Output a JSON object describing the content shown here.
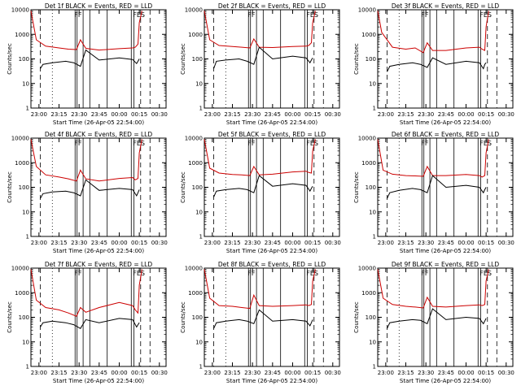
{
  "colors": {
    "events": "#000000",
    "lld": "#cc0000",
    "axes": "#000000",
    "background": "#ffffff"
  },
  "panels_layout": {
    "rows": 3,
    "cols": 3
  },
  "chart_data": [
    {
      "type": "line",
      "title": "Det 1f BLACK = Events, RED = LLD",
      "xlabel": "Start Time (26-Apr-05 22:54:00)",
      "ylabel": "Counts/sec",
      "x_ticks": [
        "23:00",
        "23:15",
        "23:30",
        "23:45",
        "00:00",
        "00:15",
        "00:30"
      ],
      "y_ticks": [
        "1",
        "10",
        "100",
        "1000",
        "10000"
      ],
      "xlim": [
        "22:54",
        "00:35"
      ],
      "ylim": [
        1,
        10000
      ],
      "y_scale": "log",
      "marker_labels": [
        "FF",
        "F",
        "ES"
      ],
      "series": [
        {
          "color": "#cc0000",
          "x": [
            "22:54",
            "22:58",
            "23:05",
            "23:15",
            "23:22",
            "23:28",
            "23:31",
            "23:35",
            "23:45",
            "00:00",
            "00:10",
            "00:12",
            "00:14",
            "00:15",
            "00:17"
          ],
          "values": [
            9000,
            600,
            330,
            280,
            250,
            240,
            600,
            270,
            230,
            260,
            280,
            300,
            400,
            3000,
            9000
          ]
        },
        {
          "color": "#000000",
          "x": [
            "23:01",
            "23:03",
            "23:10",
            "23:20",
            "23:26",
            "23:31",
            "23:35",
            "23:45",
            "00:00",
            "00:10",
            "00:13",
            "00:14",
            "00:15"
          ],
          "values": [
            40,
            60,
            70,
            80,
            70,
            50,
            230,
            90,
            110,
            95,
            65,
            80,
            100
          ]
        }
      ]
    },
    {
      "type": "line",
      "title": "Det 2f BLACK = Events, RED = LLD",
      "xlabel": "Start Time (26-Apr-05 22:54:00)",
      "ylabel": "Counts/sec",
      "x_ticks": [
        "23:00",
        "23:15",
        "23:30",
        "23:45",
        "00:00",
        "00:15",
        "00:30"
      ],
      "y_ticks": [
        "1",
        "10",
        "100",
        "1000",
        "10000"
      ],
      "xlim": [
        "22:54",
        "00:35"
      ],
      "ylim": [
        1,
        10000
      ],
      "y_scale": "log",
      "marker_labels": [
        "FF",
        "F",
        "ES"
      ],
      "series": [
        {
          "color": "#cc0000",
          "x": [
            "22:54",
            "22:58",
            "23:05",
            "23:15",
            "23:22",
            "23:28",
            "23:31",
            "23:35",
            "23:45",
            "00:00",
            "00:10",
            "00:12",
            "00:14",
            "00:15",
            "00:17"
          ],
          "values": [
            9000,
            600,
            350,
            320,
            300,
            280,
            650,
            300,
            290,
            320,
            330,
            350,
            450,
            3000,
            9000
          ]
        },
        {
          "color": "#000000",
          "x": [
            "23:01",
            "23:03",
            "23:10",
            "23:20",
            "23:26",
            "23:31",
            "23:35",
            "23:45",
            "00:00",
            "00:10",
            "00:13",
            "00:14",
            "00:15"
          ],
          "values": [
            40,
            80,
            90,
            100,
            80,
            60,
            300,
            100,
            130,
            110,
            70,
            90,
            110
          ]
        }
      ]
    },
    {
      "type": "line",
      "title": "Det 3f BLACK = Events, RED = LLD",
      "xlabel": "Start Time (26-Apr-05 22:54:00)",
      "ylabel": "Counts/sec",
      "x_ticks": [
        "23:00",
        "23:15",
        "23:30",
        "23:45",
        "00:00",
        "00:15",
        "00:30"
      ],
      "y_ticks": [
        "1",
        "10",
        "100",
        "1000",
        "10000"
      ],
      "xlim": [
        "22:54",
        "00:35"
      ],
      "ylim": [
        1,
        10000
      ],
      "y_scale": "log",
      "marker_labels": [
        "FF",
        "F",
        "ES"
      ],
      "series": [
        {
          "color": "#cc0000",
          "x": [
            "22:54",
            "22:57",
            "23:05",
            "23:15",
            "23:22",
            "23:28",
            "23:31",
            "23:35",
            "23:45",
            "00:00",
            "00:10",
            "00:12",
            "00:14",
            "00:15",
            "00:17"
          ],
          "values": [
            9000,
            1200,
            300,
            250,
            280,
            180,
            450,
            220,
            220,
            280,
            300,
            250,
            220,
            2000,
            9000
          ]
        },
        {
          "color": "#000000",
          "x": [
            "23:01",
            "23:03",
            "23:10",
            "23:20",
            "23:26",
            "23:31",
            "23:35",
            "23:45",
            "00:00",
            "00:10",
            "00:13",
            "00:14",
            "00:15"
          ],
          "values": [
            30,
            50,
            60,
            70,
            60,
            45,
            110,
            60,
            80,
            70,
            40,
            60,
            70
          ]
        }
      ]
    },
    {
      "type": "line",
      "title": "Det 4f BLACK = Events, RED = LLD",
      "xlabel": "Start Time (26-Apr-05 22:54:00)",
      "ylabel": "Counts/sec",
      "x_ticks": [
        "23:00",
        "23:15",
        "23:30",
        "23:45",
        "00:00",
        "00:15",
        "00:30"
      ],
      "y_ticks": [
        "1",
        "10",
        "100",
        "1000",
        "10000"
      ],
      "xlim": [
        "22:54",
        "00:35"
      ],
      "ylim": [
        1,
        10000
      ],
      "y_scale": "log",
      "marker_labels": [
        "FF",
        "F",
        "ES"
      ],
      "series": [
        {
          "color": "#cc0000",
          "x": [
            "22:54",
            "22:58",
            "23:05",
            "23:15",
            "23:22",
            "23:28",
            "23:31",
            "23:35",
            "23:45",
            "00:00",
            "00:10",
            "00:12",
            "00:14",
            "00:15",
            "00:17"
          ],
          "values": [
            9000,
            700,
            320,
            260,
            220,
            180,
            500,
            220,
            180,
            230,
            250,
            200,
            230,
            2500,
            9000
          ]
        },
        {
          "color": "#000000",
          "x": [
            "23:01",
            "23:03",
            "23:10",
            "23:20",
            "23:26",
            "23:31",
            "23:35",
            "23:45",
            "00:00",
            "00:10",
            "00:13",
            "00:14",
            "00:15"
          ],
          "values": [
            35,
            55,
            65,
            70,
            60,
            45,
            200,
            75,
            90,
            80,
            45,
            60,
            80
          ]
        }
      ]
    },
    {
      "type": "line",
      "title": "Det 5f BLACK = Events, RED = LLD",
      "xlabel": "Start Time (26-Apr-05 22:54:00)",
      "ylabel": "Counts/sec",
      "x_ticks": [
        "23:00",
        "23:15",
        "23:30",
        "23:45",
        "00:00",
        "00:15",
        "00:30"
      ],
      "y_ticks": [
        "1",
        "10",
        "100",
        "1000",
        "10000"
      ],
      "xlim": [
        "22:54",
        "00:35"
      ],
      "ylim": [
        1,
        10000
      ],
      "y_scale": "log",
      "marker_labels": [
        "FF",
        "F",
        "ES"
      ],
      "series": [
        {
          "color": "#cc0000",
          "x": [
            "22:54",
            "22:58",
            "23:05",
            "23:15",
            "23:22",
            "23:28",
            "23:31",
            "23:35",
            "23:45",
            "00:00",
            "00:10",
            "00:12",
            "00:14",
            "00:15",
            "00:17"
          ],
          "values": [
            9000,
            600,
            380,
            330,
            320,
            300,
            700,
            320,
            340,
            420,
            450,
            400,
            380,
            3000,
            9000
          ]
        },
        {
          "color": "#000000",
          "x": [
            "23:01",
            "23:03",
            "23:10",
            "23:20",
            "23:26",
            "23:31",
            "23:35",
            "23:45",
            "00:00",
            "00:10",
            "00:13",
            "00:14",
            "00:15"
          ],
          "values": [
            40,
            70,
            80,
            90,
            80,
            60,
            300,
            110,
            140,
            120,
            70,
            90,
            110
          ]
        }
      ]
    },
    {
      "type": "line",
      "title": "Det 6f BLACK = Events, RED = LLD",
      "xlabel": "Start Time (26-Apr-05 22:54:00)",
      "ylabel": "Counts/sec",
      "x_ticks": [
        "23:00",
        "23:15",
        "23:30",
        "23:45",
        "00:00",
        "00:15",
        "00:30"
      ],
      "y_ticks": [
        "1",
        "10",
        "100",
        "1000",
        "10000"
      ],
      "xlim": [
        "22:54",
        "00:35"
      ],
      "ylim": [
        1,
        10000
      ],
      "y_scale": "log",
      "marker_labels": [
        "FF",
        "F",
        "ES"
      ],
      "series": [
        {
          "color": "#cc0000",
          "x": [
            "22:54",
            "22:58",
            "23:05",
            "23:15",
            "23:22",
            "23:28",
            "23:31",
            "23:35",
            "23:45",
            "00:00",
            "00:10",
            "00:12",
            "00:14",
            "00:15",
            "00:17"
          ],
          "values": [
            9000,
            500,
            340,
            300,
            290,
            280,
            700,
            300,
            300,
            330,
            300,
            260,
            300,
            2500,
            9000
          ]
        },
        {
          "color": "#000000",
          "x": [
            "23:01",
            "23:03",
            "23:10",
            "23:20",
            "23:26",
            "23:31",
            "23:35",
            "23:45",
            "00:00",
            "00:10",
            "00:13",
            "00:14",
            "00:15"
          ],
          "values": [
            35,
            60,
            75,
            90,
            80,
            60,
            300,
            100,
            120,
            100,
            60,
            80,
            100
          ]
        }
      ]
    },
    {
      "type": "line",
      "title": "Det 7f BLACK = Events, RED = LLD",
      "xlabel": "Start Time (26-Apr-05 22:54:00)",
      "ylabel": "Counts/sec",
      "x_ticks": [
        "23:00",
        "23:15",
        "23:30",
        "23:45",
        "00:00",
        "00:15",
        "00:30"
      ],
      "y_ticks": [
        "1",
        "10",
        "100",
        "1000",
        "10000"
      ],
      "xlim": [
        "22:54",
        "00:35"
      ],
      "ylim": [
        1,
        10000
      ],
      "y_scale": "log",
      "marker_labels": [
        "FF",
        "F",
        "ES"
      ],
      "series": [
        {
          "color": "#cc0000",
          "x": [
            "22:54",
            "22:58",
            "23:05",
            "23:15",
            "23:22",
            "23:28",
            "23:31",
            "23:35",
            "23:45",
            "00:00",
            "00:10",
            "00:12",
            "00:14",
            "00:15",
            "00:17"
          ],
          "values": [
            9000,
            500,
            250,
            200,
            150,
            110,
            250,
            160,
            250,
            400,
            300,
            200,
            150,
            2000,
            9000
          ]
        },
        {
          "color": "#000000",
          "x": [
            "23:01",
            "23:03",
            "23:10",
            "23:20",
            "23:26",
            "23:31",
            "23:35",
            "23:45",
            "00:00",
            "00:10",
            "00:13",
            "00:14",
            "00:15"
          ],
          "values": [
            40,
            60,
            70,
            60,
            50,
            35,
            80,
            60,
            90,
            80,
            40,
            50,
            60
          ]
        }
      ]
    },
    {
      "type": "line",
      "title": "Det 8f BLACK = Events, RED = LLD",
      "xlabel": "Start Time (26-Apr-05 22:54:00)",
      "ylabel": "Counts/sec",
      "x_ticks": [
        "23:00",
        "23:15",
        "23:30",
        "23:45",
        "00:00",
        "00:15",
        "00:30"
      ],
      "y_ticks": [
        "1",
        "10",
        "100",
        "1000",
        "10000"
      ],
      "xlim": [
        "22:54",
        "00:35"
      ],
      "ylim": [
        1,
        10000
      ],
      "y_scale": "log",
      "marker_labels": [
        "FF",
        "F",
        "ES"
      ],
      "series": [
        {
          "color": "#cc0000",
          "x": [
            "22:54",
            "22:58",
            "23:05",
            "23:15",
            "23:22",
            "23:28",
            "23:31",
            "23:35",
            "23:45",
            "00:00",
            "00:10",
            "00:12",
            "00:14",
            "00:15",
            "00:17"
          ],
          "values": [
            9000,
            600,
            300,
            280,
            250,
            230,
            800,
            300,
            280,
            300,
            320,
            300,
            330,
            3000,
            9000
          ]
        },
        {
          "color": "#000000",
          "x": [
            "23:01",
            "23:03",
            "23:10",
            "23:20",
            "23:26",
            "23:31",
            "23:35",
            "23:45",
            "00:00",
            "00:10",
            "00:13",
            "00:14",
            "00:15"
          ],
          "values": [
            35,
            60,
            70,
            80,
            70,
            55,
            200,
            70,
            80,
            70,
            45,
            60,
            80
          ]
        }
      ]
    },
    {
      "type": "line",
      "title": "Det 9f BLACK = Events, RED = LLD",
      "xlabel": "Start Time (26-Apr-05 22:54:00)",
      "ylabel": "Counts/sec",
      "x_ticks": [
        "23:00",
        "23:15",
        "23:30",
        "23:45",
        "00:00",
        "00:15",
        "00:30"
      ],
      "y_ticks": [
        "1",
        "10",
        "100",
        "1000",
        "10000"
      ],
      "xlim": [
        "22:54",
        "00:35"
      ],
      "ylim": [
        1,
        10000
      ],
      "y_scale": "log",
      "marker_labels": [
        "FF",
        "F",
        "ES"
      ],
      "series": [
        {
          "color": "#cc0000",
          "x": [
            "22:54",
            "22:58",
            "23:05",
            "23:15",
            "23:22",
            "23:28",
            "23:31",
            "23:35",
            "23:45",
            "00:00",
            "00:10",
            "00:12",
            "00:14",
            "00:15",
            "00:17"
          ],
          "values": [
            9000,
            600,
            330,
            280,
            260,
            240,
            650,
            280,
            260,
            300,
            320,
            300,
            330,
            3000,
            9000
          ]
        },
        {
          "color": "#000000",
          "x": [
            "23:01",
            "23:03",
            "23:10",
            "23:20",
            "23:26",
            "23:31",
            "23:35",
            "23:45",
            "00:00",
            "00:10",
            "00:13",
            "00:14",
            "00:15"
          ],
          "values": [
            35,
            60,
            70,
            80,
            75,
            55,
            220,
            80,
            100,
            90,
            55,
            70,
            90
          ]
        }
      ]
    }
  ]
}
